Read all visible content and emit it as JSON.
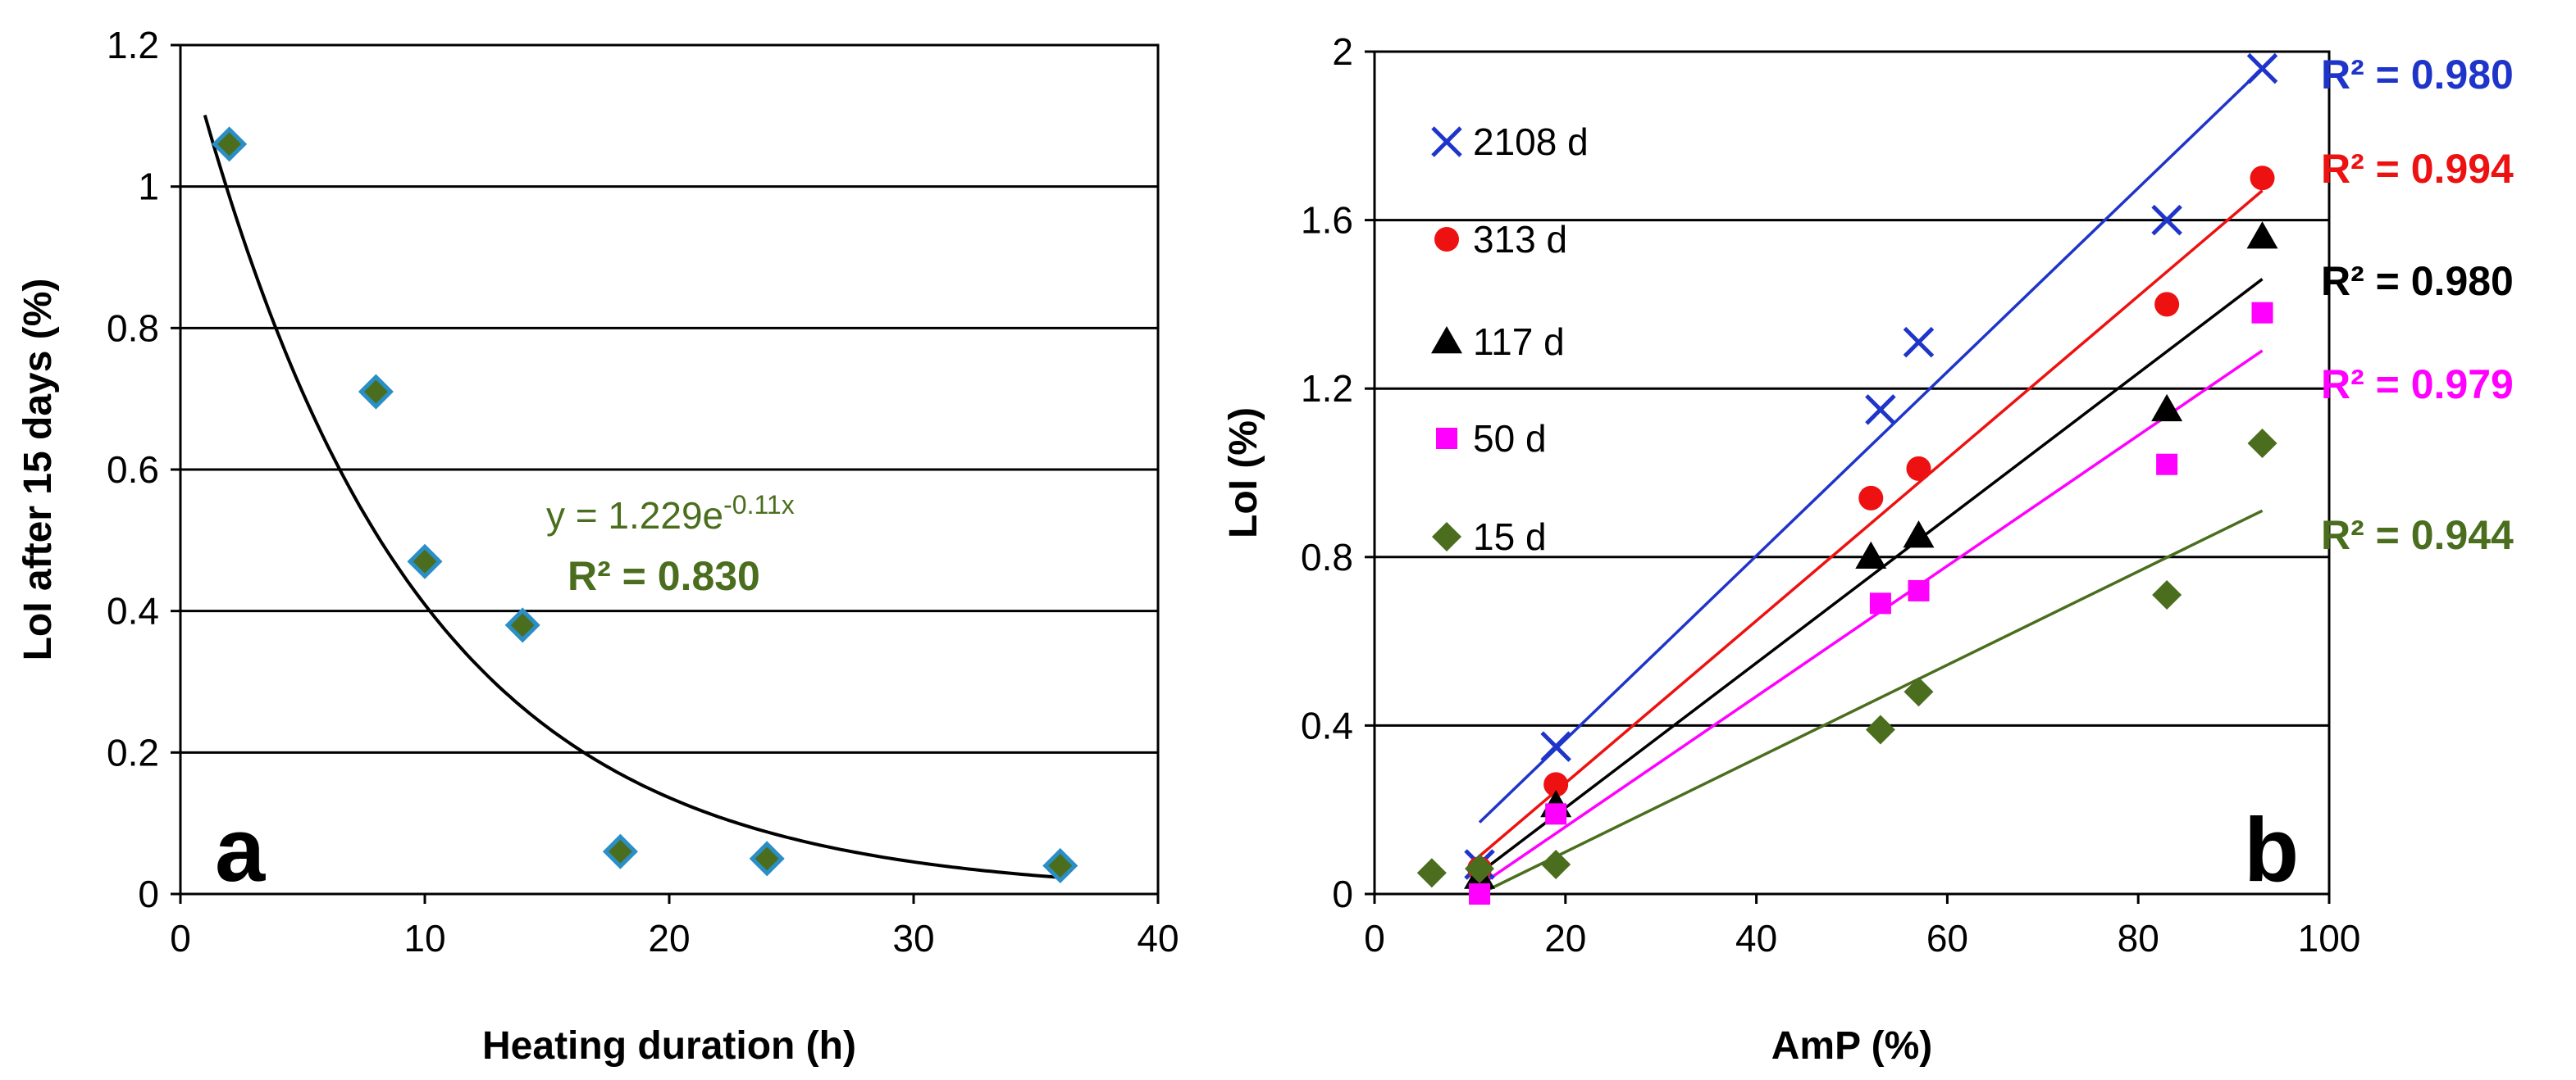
{
  "chart_data": [
    {
      "type": "scatter",
      "panel_label": "a",
      "xlabel": "Heating duration (h)",
      "ylabel": "LoI after 15 days (%)",
      "xlim": [
        0,
        40
      ],
      "ylim": [
        0,
        1.2
      ],
      "xticks": [
        "0",
        "10",
        "20",
        "30",
        "40"
      ],
      "yticks": [
        "0",
        "0.2",
        "0.4",
        "0.6",
        "0.8",
        "1",
        "1.2"
      ],
      "grid": "horizontal",
      "points": [
        {
          "x": 2,
          "y": 1.06
        },
        {
          "x": 8,
          "y": 0.71
        },
        {
          "x": 10,
          "y": 0.47
        },
        {
          "x": 14,
          "y": 0.38
        },
        {
          "x": 18,
          "y": 0.06
        },
        {
          "x": 24,
          "y": 0.05
        },
        {
          "x": 36,
          "y": 0.04
        }
      ],
      "marker_fill": "#4a6e1e",
      "marker_edge": "#2b8fc7",
      "fit": {
        "a": 1.229,
        "b": -0.11,
        "x_range": [
          1,
          36
        ]
      },
      "equation": {
        "prefix": "y = 1.229e",
        "exponent": "-0.11x"
      },
      "r2_label": "R² = 0.830",
      "annotation_color": "#4a6e1e"
    },
    {
      "type": "scatter",
      "panel_label": "b",
      "xlabel": "AmP (%)",
      "ylabel": "LoI (%)",
      "xlim": [
        0,
        100
      ],
      "ylim": [
        0,
        2
      ],
      "xticks": [
        "0",
        "20",
        "40",
        "60",
        "80",
        "100"
      ],
      "yticks": [
        "0",
        "0.4",
        "0.8",
        "1.2",
        "1.6",
        "2"
      ],
      "grid": "horizontal",
      "series": [
        {
          "name": "2108 d",
          "marker": "x",
          "color": "#1f35c9",
          "x": [
            11,
            19,
            53,
            57,
            83,
            93
          ],
          "y": [
            0.07,
            0.35,
            1.15,
            1.31,
            1.6,
            1.96
          ],
          "fit_line": [
            [
              11,
              0.17
            ],
            [
              93,
              1.96
            ]
          ],
          "r2_label": "R² = 0.980"
        },
        {
          "name": "313 d",
          "marker": "circle",
          "color": "#ee1111",
          "x": [
            11,
            19,
            52,
            57,
            83,
            93
          ],
          "y": [
            0.06,
            0.26,
            0.94,
            1.01,
            1.4,
            1.7
          ],
          "fit_line": [
            [
              11,
              0.09
            ],
            [
              93,
              1.67
            ]
          ],
          "r2_label": "R² = 0.994"
        },
        {
          "name": "117 d",
          "marker": "triangle",
          "color": "#000000",
          "x": [
            11,
            19,
            52,
            57,
            83,
            93
          ],
          "y": [
            0.04,
            0.21,
            0.8,
            0.85,
            1.15,
            1.56
          ],
          "fit_line": [
            [
              11,
              0.05
            ],
            [
              93,
              1.46
            ]
          ],
          "r2_label": "R² = 0.980"
        },
        {
          "name": "50 d",
          "marker": "square",
          "color": "#ff00ff",
          "x": [
            11,
            19,
            53,
            57,
            83,
            93
          ],
          "y": [
            0.0,
            0.19,
            0.69,
            0.72,
            1.02,
            1.38
          ],
          "fit_line": [
            [
              11,
              0.02
            ],
            [
              93,
              1.29
            ]
          ],
          "r2_label": "R² = 0.979"
        },
        {
          "name": "15 d",
          "marker": "diamond",
          "color": "#4a6e1e",
          "x": [
            6,
            11,
            19,
            53,
            57,
            83,
            93
          ],
          "y": [
            0.05,
            0.06,
            0.07,
            0.39,
            0.48,
            0.71,
            1.07
          ],
          "fit_line": [
            [
              11,
              0.0
            ],
            [
              93,
              0.91
            ]
          ],
          "r2_label": "R² = 0.944"
        }
      ]
    }
  ]
}
